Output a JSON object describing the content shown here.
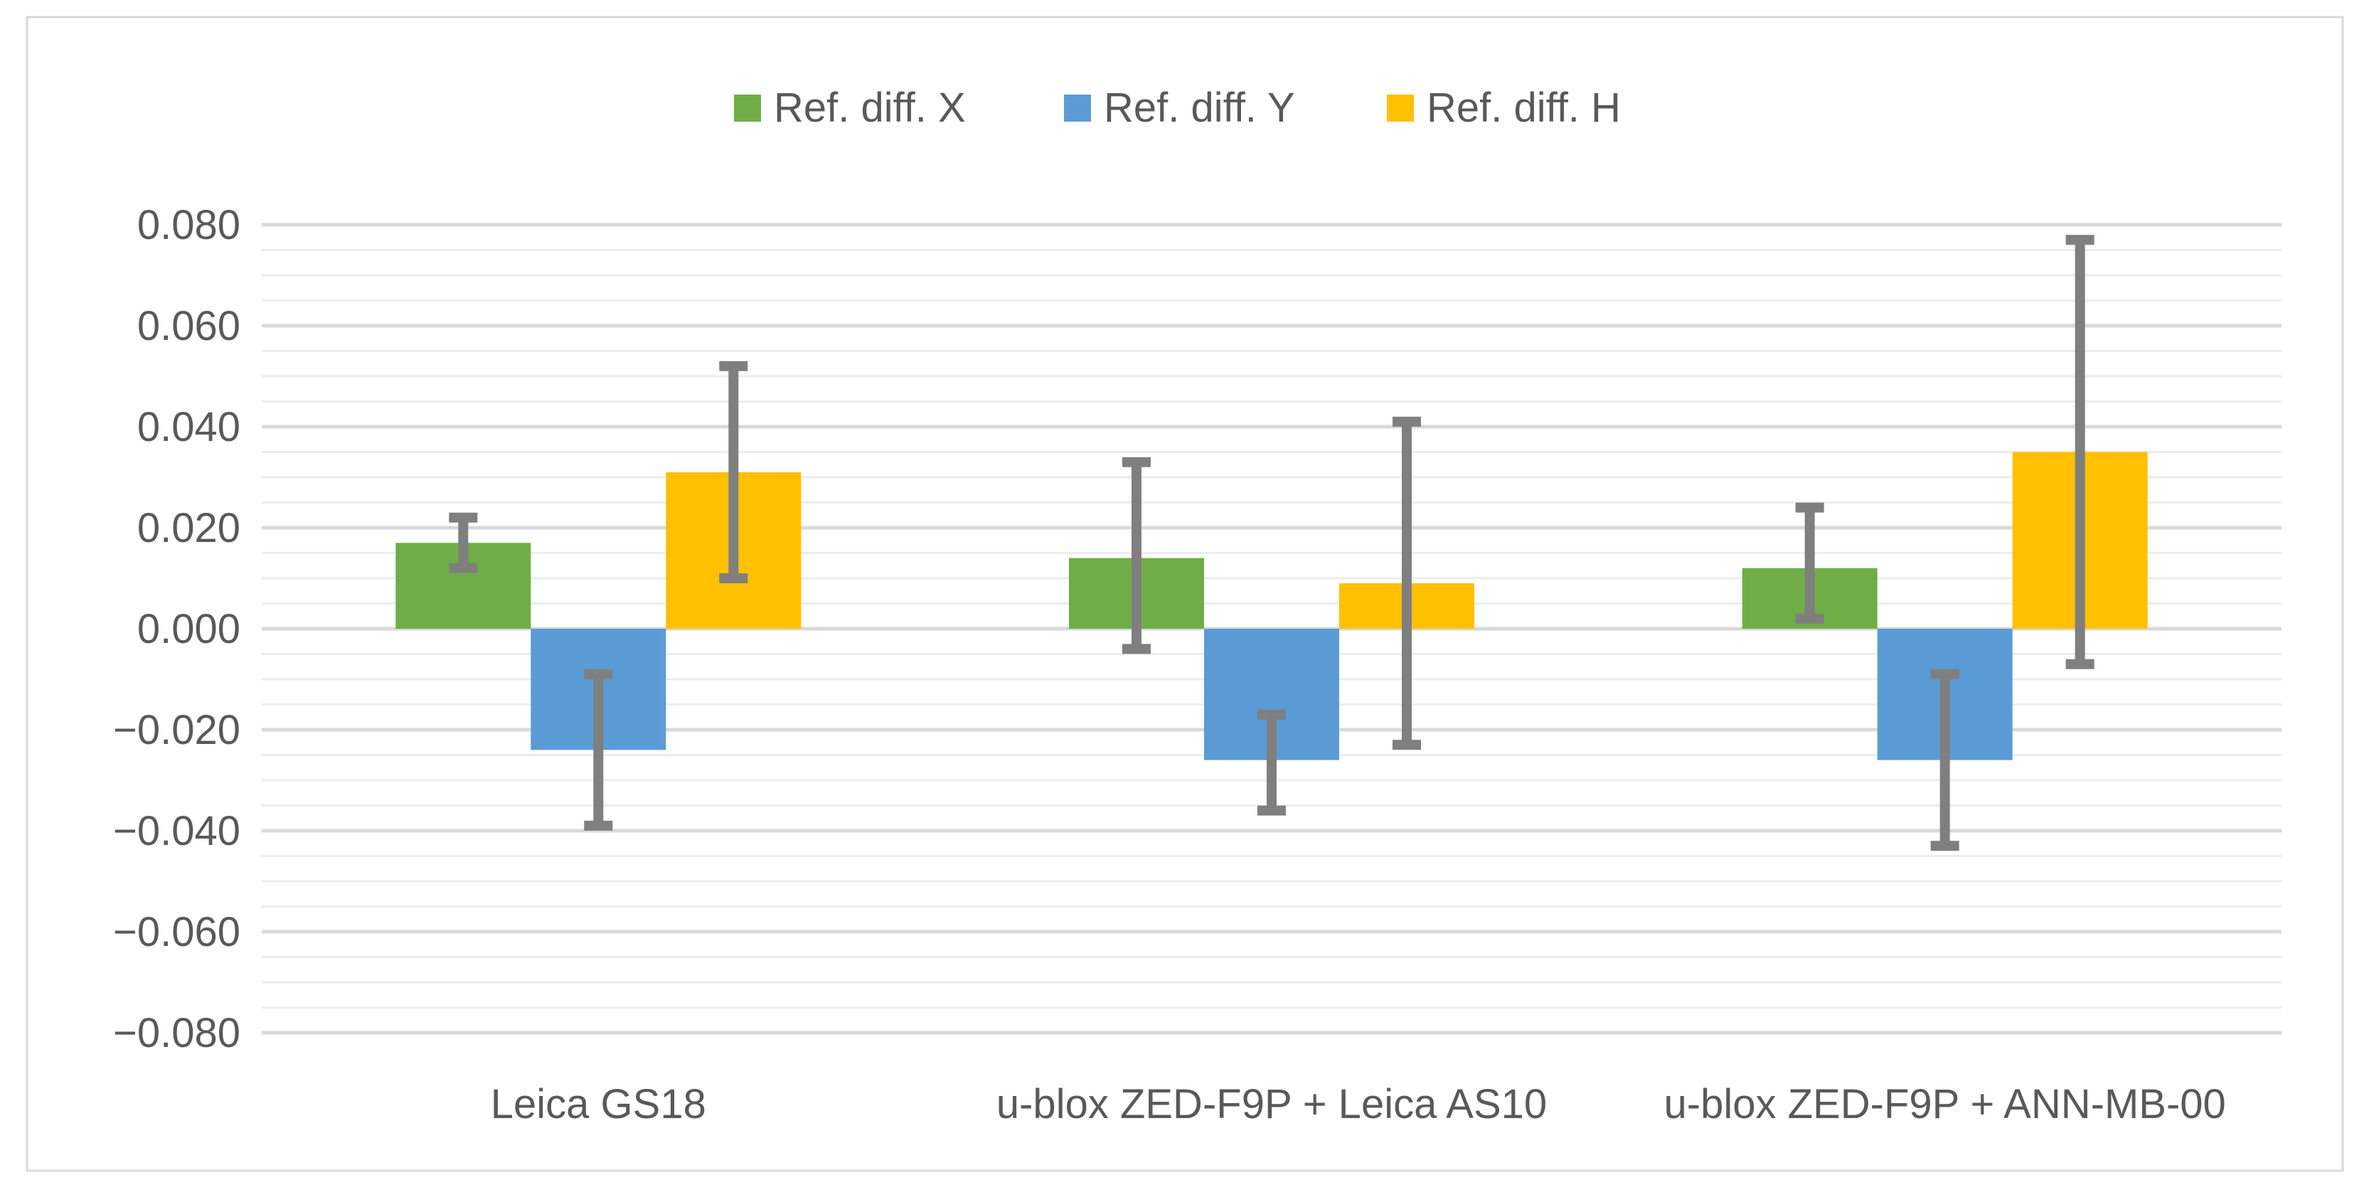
{
  "chart_data": {
    "type": "bar",
    "title": "",
    "xlabel": "",
    "ylabel": "",
    "categories": [
      "Leica GS18",
      "u-blox ZED-F9P + Leica AS10",
      "u-blox ZED-F9P + ANN-MB-00"
    ],
    "series": [
      {
        "name": "Ref. diff. X",
        "color": "#70AD47",
        "values": [
          0.017,
          0.014,
          0.012
        ],
        "error_low": [
          0.012,
          -0.004,
          0.002
        ],
        "error_high": [
          0.022,
          0.033,
          0.024
        ]
      },
      {
        "name": "Ref. diff. Y",
        "color": "#5B9BD5",
        "values": [
          -0.024,
          -0.026,
          -0.026
        ],
        "error_low": [
          -0.039,
          -0.036,
          -0.043
        ],
        "error_high": [
          -0.009,
          -0.017,
          -0.009
        ]
      },
      {
        "name": "Ref. diff. H",
        "color": "#FFC000",
        "values": [
          0.031,
          0.009,
          0.035
        ],
        "error_low": [
          0.01,
          -0.023,
          -0.007
        ],
        "error_high": [
          0.052,
          0.041,
          0.077
        ]
      }
    ],
    "yticks": [
      0.08,
      0.06,
      0.04,
      0.02,
      0.0,
      -0.02,
      -0.04,
      -0.06,
      -0.08
    ],
    "ytick_labels": [
      "0.080",
      "0.060",
      "0.040",
      "0.020",
      "0.000",
      "−0.020",
      "−0.040",
      "−0.060",
      "−0.080"
    ],
    "ylim": [
      -0.08,
      0.08
    ],
    "minor_step": 0.005,
    "grid": true,
    "legend_position": "top-center",
    "error_bar_color": "#7F7F7F",
    "axis_text_color": "#595959",
    "gridline_color": "#D9D9D9",
    "minor_gridline_color": "#EDEDED",
    "border_color": "#D9D9D9"
  }
}
